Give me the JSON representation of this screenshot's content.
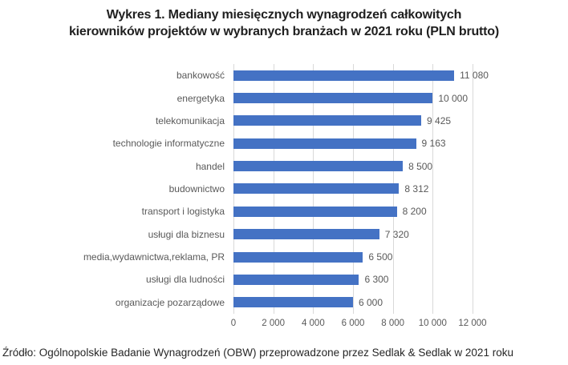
{
  "title": {
    "line1": "Wykres 1. Mediany miesięcznych wynagrodzeń całkowitych",
    "line2": "kierowników projektów w wybranych branżach w 2021 roku (PLN brutto)"
  },
  "source_note": "Źródło: Ogólnopolskie Badanie Wynagrodzeń (OBW) przeprowadzone przez Sedlak & Sedlak w 2021 roku",
  "colors": {
    "bar": "#4472c4",
    "gridline": "#d9d9d9",
    "axis_text": "#595959",
    "title_text": "#1f1f1f"
  },
  "chart_data": {
    "type": "bar",
    "orientation": "horizontal",
    "title": "Wykres 1. Mediany miesięcznych wynagrodzeń całkowitych kierowników projektów w wybranych branżach w 2021 roku (PLN brutto)",
    "xlabel": "",
    "ylabel": "",
    "grid": true,
    "xlim": [
      0,
      12000
    ],
    "xticks": [
      0,
      2000,
      4000,
      6000,
      8000,
      10000,
      12000
    ],
    "xtick_labels": [
      "0",
      "2 000",
      "4 000",
      "6 000",
      "8 000",
      "10 000",
      "12 000"
    ],
    "categories": [
      "bankowość",
      "energetyka",
      "telekomunikacja",
      "technologie informatyczne",
      "handel",
      "budownictwo",
      "transport i logistyka",
      "usługi dla biznesu",
      "media,wydawnictwa,reklama, PR",
      "usługi dla ludności",
      "organizacje pozarządowe"
    ],
    "values": [
      11080,
      10000,
      9425,
      9163,
      8500,
      8312,
      8200,
      7320,
      6500,
      6300,
      6000
    ],
    "value_labels": [
      "11 080",
      "10 000",
      "9 425",
      "9 163",
      "8 500",
      "8 312",
      "8 200",
      "7 320",
      "6 500",
      "6 300",
      "6 000"
    ]
  }
}
